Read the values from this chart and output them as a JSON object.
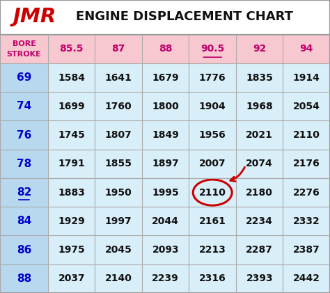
{
  "title": "ENGINE DISPLACEMENT CHART",
  "jmr_text": "JMR",
  "bore_values": [
    "85.5",
    "87",
    "88",
    "90.5",
    "92",
    "94"
  ],
  "stroke_values": [
    69,
    74,
    76,
    78,
    82,
    84,
    86,
    88
  ],
  "table_data": [
    [
      1584,
      1641,
      1679,
      1776,
      1835,
      1914
    ],
    [
      1699,
      1760,
      1800,
      1904,
      1968,
      2054
    ],
    [
      1745,
      1807,
      1849,
      1956,
      2021,
      2110
    ],
    [
      1791,
      1855,
      1897,
      2007,
      2074,
      2176
    ],
    [
      1883,
      1950,
      1995,
      2110,
      2180,
      2276
    ],
    [
      1929,
      1997,
      2044,
      2161,
      2234,
      2332
    ],
    [
      1975,
      2045,
      2093,
      2213,
      2287,
      2387
    ],
    [
      2037,
      2140,
      2239,
      2316,
      2393,
      2442
    ]
  ],
  "header_bg": "#f8c8d0",
  "row_bg_light": "#d8eef8",
  "stroke_col_bg": "#b8d8f0",
  "header_text_color": "#c0006a",
  "stroke_text_color": "#0000cc",
  "data_text_color": "#111111",
  "line_color": "#aaaaaa",
  "circle_color": "#cc0000",
  "circled_row": 4,
  "circled_col": 3,
  "underlined_bore_col": 3,
  "underlined_stroke_row": 4,
  "fig_bg": "#ffffff"
}
